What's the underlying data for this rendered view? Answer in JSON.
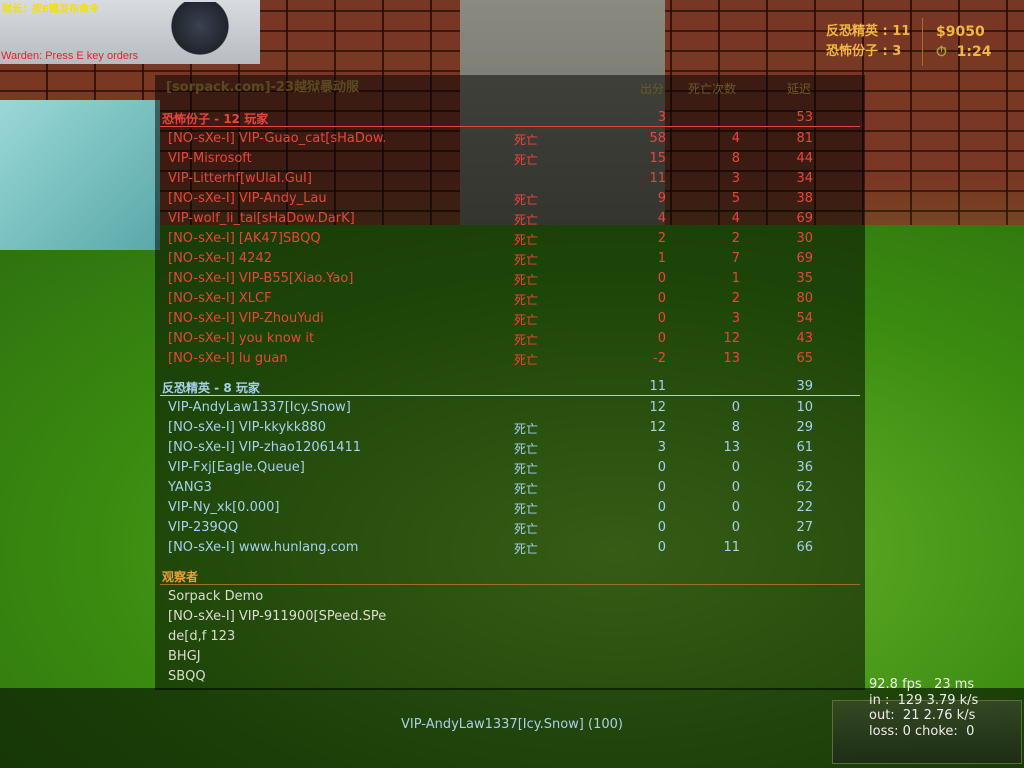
{
  "top_overlay": {
    "chinese_hint": "狱长：按E键发布命令",
    "english_hint": "Warden: Press E key orders"
  },
  "hud": {
    "ct_label": "反恐精英 : 11",
    "t_label": "恐怖份子 : 3",
    "money": "$9050",
    "timer": "1:24",
    "timer_icon": "stopwatch-icon"
  },
  "scoreboard": {
    "server_title": "[sorpack.com]-23越狱暴动服",
    "headers": {
      "score": "出分",
      "deaths": "死亡次数",
      "latency": "延迟"
    },
    "terrorists": {
      "label": "恐怖份子   -   12 玩家",
      "score": "3",
      "latency": "53",
      "color": "#e8463a",
      "players": [
        {
          "name": "[NO-sXe-I] VIP-Guao_cat[sHaDow.",
          "status": "死亡",
          "score": "58",
          "deaths": "4",
          "latency": "81"
        },
        {
          "name": "VIP-Misrosoft",
          "status": "死亡",
          "score": "15",
          "deaths": "8",
          "latency": "44"
        },
        {
          "name": "VIP-Litterhf[wUlaI.GuI]",
          "status": "",
          "score": "11",
          "deaths": "3",
          "latency": "34"
        },
        {
          "name": "[NO-sXe-I] VIP-Andy_Lau",
          "status": "死亡",
          "score": "9",
          "deaths": "5",
          "latency": "38"
        },
        {
          "name": "VIP-wolf_li_tai[sHaDow.DarK]",
          "status": "死亡",
          "score": "4",
          "deaths": "4",
          "latency": "69"
        },
        {
          "name": "[NO-sXe-I] [AK47]SBQQ",
          "status": "死亡",
          "score": "2",
          "deaths": "2",
          "latency": "30"
        },
        {
          "name": "[NO-sXe-I] 4242",
          "status": "死亡",
          "score": "1",
          "deaths": "7",
          "latency": "69"
        },
        {
          "name": "[NO-sXe-I] VIP-B55[Xiao.Yao]",
          "status": "死亡",
          "score": "0",
          "deaths": "1",
          "latency": "35"
        },
        {
          "name": "[NO-sXe-I] XLCF",
          "status": "死亡",
          "score": "0",
          "deaths": "2",
          "latency": "80"
        },
        {
          "name": "[NO-sXe-I] VIP-ZhouYudi",
          "status": "死亡",
          "score": "0",
          "deaths": "3",
          "latency": "54"
        },
        {
          "name": "[NO-sXe-I] you know it",
          "status": "死亡",
          "score": "0",
          "deaths": "12",
          "latency": "43"
        },
        {
          "name": "[NO-sXe-I] lu guan",
          "status": "死亡",
          "score": "-2",
          "deaths": "13",
          "latency": "65"
        }
      ]
    },
    "counter_terrorists": {
      "label": "反恐精英   -   8 玩家",
      "score": "11",
      "latency": "39",
      "color": "#a8d0ec",
      "players": [
        {
          "name": "VIP-AndyLaw1337[Icy.Snow]",
          "status": "",
          "score": "12",
          "deaths": "0",
          "latency": "10"
        },
        {
          "name": "[NO-sXe-I] VIP-kkykk880",
          "status": "死亡",
          "score": "12",
          "deaths": "8",
          "latency": "29"
        },
        {
          "name": "[NO-sXe-I] VIP-zhao12061411",
          "status": "死亡",
          "score": "3",
          "deaths": "13",
          "latency": "61"
        },
        {
          "name": "VIP-Fxj[Eagle.Queue]",
          "status": "死亡",
          "score": "0",
          "deaths": "0",
          "latency": "36"
        },
        {
          "name": "YANG3",
          "status": "死亡",
          "score": "0",
          "deaths": "0",
          "latency": "62"
        },
        {
          "name": "VIP-Ny_xk[0.000]",
          "status": "死亡",
          "score": "0",
          "deaths": "0",
          "latency": "22"
        },
        {
          "name": "VIP-239QQ",
          "status": "死亡",
          "score": "0",
          "deaths": "0",
          "latency": "27"
        },
        {
          "name": "[NO-sXe-I] www.hunlang.com",
          "status": "死亡",
          "score": "0",
          "deaths": "11",
          "latency": "66"
        }
      ]
    },
    "spectators": {
      "label": "观察者",
      "players": [
        "Sorpack Demo",
        "[NO-sXe-I] VIP-911900[SPeed.SPe",
        "de[d,f 123",
        "BHGJ",
        "SBQQ"
      ]
    }
  },
  "spectating": "VIP-AndyLaw1337[Icy.Snow] (100)",
  "net_graph": {
    "line1": "92.8 fps   23 ms",
    "line2": "in :  129 3.79 k/s",
    "line3": "out:  21 2.76 k/s",
    "line4": "loss: 0 choke:  0"
  }
}
